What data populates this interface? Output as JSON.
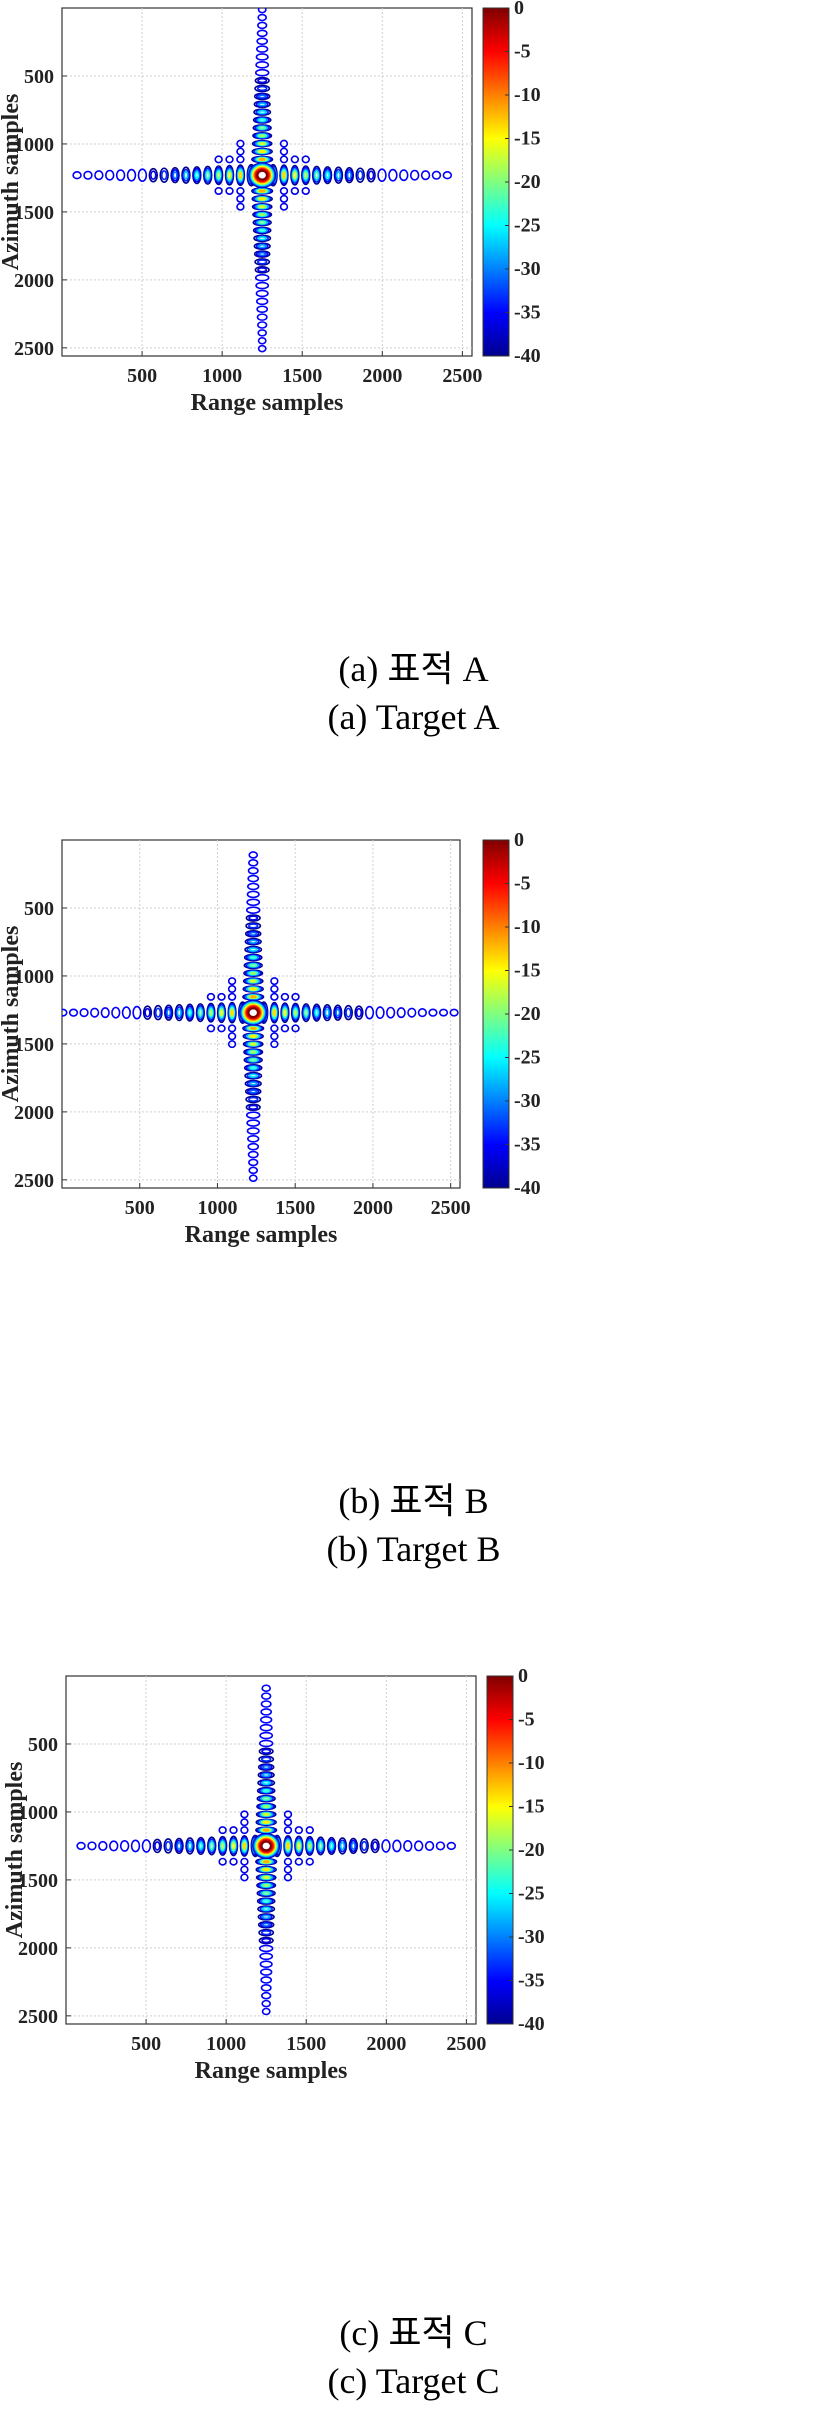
{
  "chart_data": [
    {
      "type": "heatmap",
      "panel": "A",
      "xlabel": "Range samples",
      "ylabel": "Azimuth samples",
      "xticks": [
        500,
        1000,
        1500,
        2000,
        2500
      ],
      "yticks": [
        500,
        1000,
        1500,
        2000,
        2500
      ],
      "xlim": [
        0,
        2560
      ],
      "ylim": [
        0,
        2560
      ],
      "colorbar": {
        "ticks": [
          0,
          -5,
          -10,
          -15,
          -20,
          -25,
          -30,
          -35,
          -40
        ],
        "range": [
          -40,
          0
        ],
        "colormap": "jet"
      },
      "peak": {
        "range": 1250,
        "azimuth": 1230,
        "value": 0
      },
      "range_extent": [
        90,
        2420
      ],
      "azimuth_extent": [
        0,
        2560
      ],
      "grid": true
    },
    {
      "type": "heatmap",
      "panel": "B",
      "xlabel": "Range samples",
      "ylabel": "Azimuth samples",
      "xticks": [
        500,
        1000,
        1500,
        2000,
        2500
      ],
      "yticks": [
        500,
        1000,
        1500,
        2000,
        2500
      ],
      "xlim": [
        0,
        2560
      ],
      "ylim": [
        0,
        2560
      ],
      "colorbar": {
        "ticks": [
          0,
          -5,
          -10,
          -15,
          -20,
          -25,
          -30,
          -35,
          -40
        ],
        "range": [
          -40,
          0
        ],
        "colormap": "jet"
      },
      "peak": {
        "range": 1230,
        "azimuth": 1270,
        "value": 0
      },
      "range_extent": [
        0,
        2560
      ],
      "azimuth_extent": [
        100,
        2500
      ],
      "grid": true
    },
    {
      "type": "heatmap",
      "panel": "C",
      "xlabel": "Range samples",
      "ylabel": "Azimuth samples",
      "xticks": [
        500,
        1000,
        1500,
        2000,
        2500
      ],
      "yticks": [
        500,
        1000,
        1500,
        2000,
        2500
      ],
      "xlim": [
        0,
        2560
      ],
      "ylim": [
        0,
        2560
      ],
      "colorbar": {
        "ticks": [
          0,
          -5,
          -10,
          -15,
          -20,
          -25,
          -30,
          -35,
          -40
        ],
        "range": [
          -40,
          0
        ],
        "colormap": "jet"
      },
      "peak": {
        "range": 1250,
        "azimuth": 1250,
        "value": 0
      },
      "range_extent": [
        90,
        2420
      ],
      "azimuth_extent": [
        80,
        2480
      ],
      "grid": true
    }
  ],
  "captions": [
    {
      "korean": "(a)  표적  A",
      "english": "(a)  Target  A"
    },
    {
      "korean": "(b)  표적  B",
      "english": "(b)  Target  B"
    },
    {
      "korean": "(c)  표적  C",
      "english": "(c)  Target  C"
    }
  ],
  "colors": {
    "colormap_stops": [
      "#00008f",
      "#0000ff",
      "#0080ff",
      "#00ffff",
      "#80ff80",
      "#ffff00",
      "#ff8000",
      "#ff0000",
      "#800000"
    ],
    "grid": "#cfcfcf",
    "axes": "#333333"
  }
}
